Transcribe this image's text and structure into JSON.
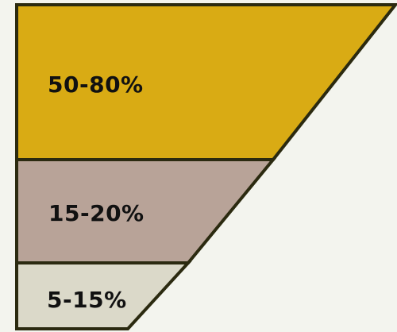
{
  "funnel": {
    "segments": [
      {
        "label": "50-80%",
        "color": "#d9ab14"
      },
      {
        "label": "15-20%",
        "color": "#b8a398"
      },
      {
        "label": "5-15%",
        "color": "#dbd9c9"
      }
    ],
    "outline_color": "#2b2a10"
  }
}
